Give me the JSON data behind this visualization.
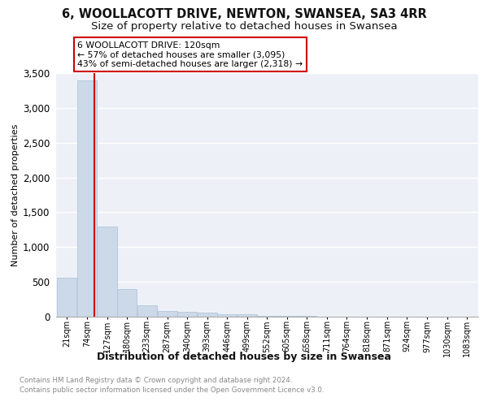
{
  "title": "6, WOOLLACOTT DRIVE, NEWTON, SWANSEA, SA3 4RR",
  "subtitle": "Size of property relative to detached houses in Swansea",
  "xlabel": "Distribution of detached houses by size in Swansea",
  "ylabel": "Number of detached properties",
  "footer_line1": "Contains HM Land Registry data © Crown copyright and database right 2024.",
  "footer_line2": "Contains public sector information licensed under the Open Government Licence v3.0.",
  "bar_edges": [
    21,
    74,
    127,
    180,
    233,
    287,
    340,
    393,
    446,
    499,
    552,
    605,
    658,
    711,
    764,
    818,
    871,
    924,
    977,
    1030,
    1083
  ],
  "bar_heights": [
    560,
    3400,
    1300,
    400,
    160,
    80,
    65,
    55,
    40,
    30,
    10,
    8,
    6,
    5,
    4,
    3,
    3,
    2,
    2,
    2,
    2
  ],
  "bar_color": "#ccd9e8",
  "bar_edgecolor": "#aabfd4",
  "property_size": 120,
  "vline_color": "#cc0000",
  "annotation_text": "6 WOOLLACOTT DRIVE: 120sqm\n← 57% of detached houses are smaller (3,095)\n43% of semi-detached houses are larger (2,318) →",
  "ylim": [
    0,
    3500
  ],
  "yticks": [
    0,
    500,
    1000,
    1500,
    2000,
    2500,
    3000,
    3500
  ],
  "bg_color": "#edf1f7",
  "grid_color": "#ffffff",
  "title_fontsize": 10.5,
  "subtitle_fontsize": 9.5,
  "tick_fontsize": 7,
  "ytick_fontsize": 8.5,
  "ylabel_fontsize": 8,
  "xlabel_fontsize": 9
}
